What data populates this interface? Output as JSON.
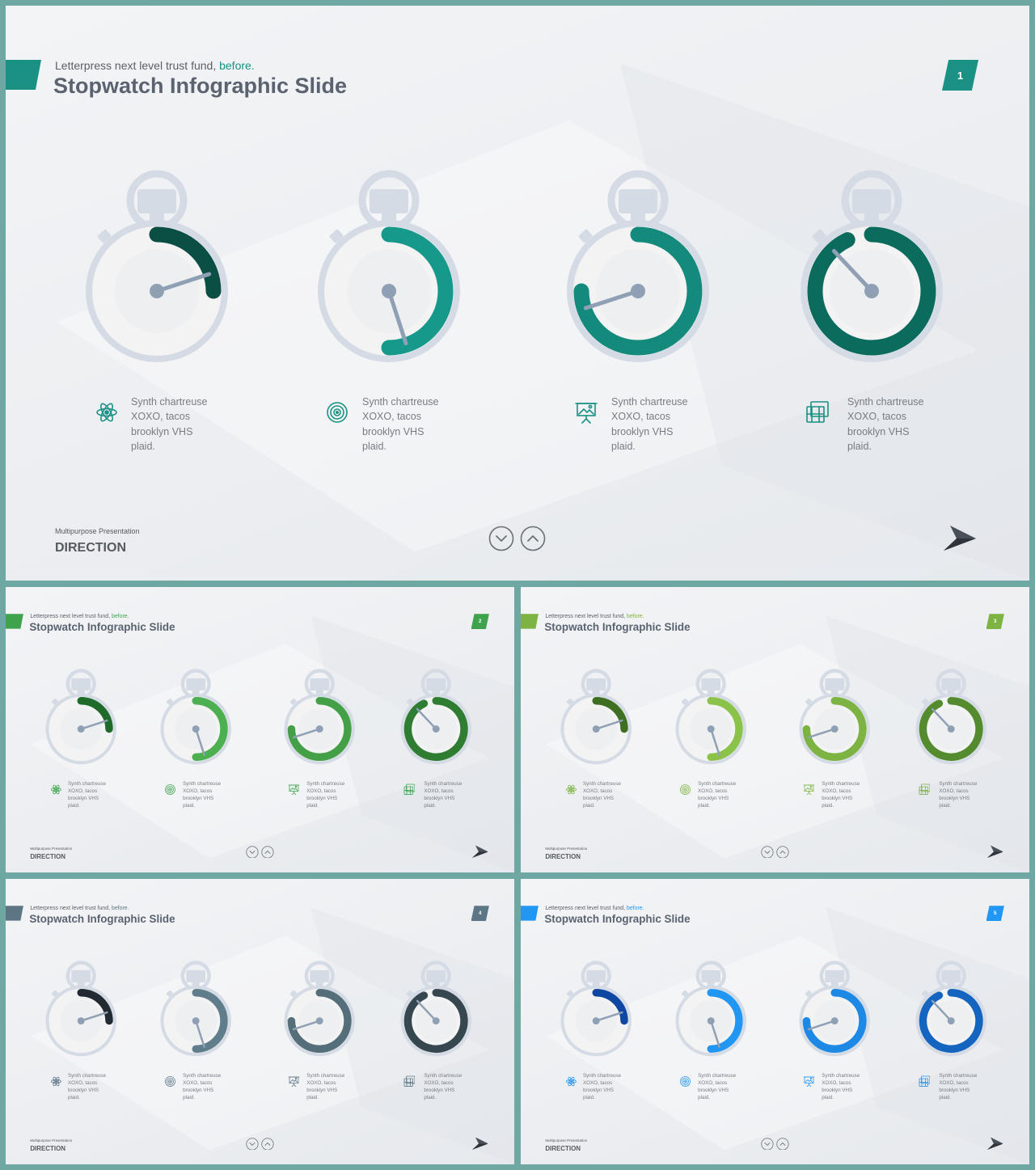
{
  "common": {
    "subtitle_prefix": "Letterpress next level trust fund,",
    "subtitle_accent": "before.",
    "title": "Stopwatch Infographic Slide",
    "footer_small": "Multipurpose Presentation",
    "footer_brand": "DIRECTION",
    "items": [
      {
        "icon": "atom-icon",
        "lines": [
          "Synth chartreuse",
          "XOXO,  tacos",
          "brooklyn VHS",
          "plaid."
        ]
      },
      {
        "icon": "target-icon",
        "lines": [
          "Synth chartreuse",
          "XOXO,  tacos",
          "brooklyn VHS",
          "plaid."
        ]
      },
      {
        "icon": "presentation-board-icon",
        "lines": [
          "Synth chartreuse",
          "XOXO,  tacos",
          "brooklyn VHS",
          "plaid."
        ]
      },
      {
        "icon": "gallery-frames-icon",
        "lines": [
          "Synth chartreuse",
          "XOXO,  tacos",
          "brooklyn VHS",
          "plaid."
        ]
      }
    ],
    "progress_fractions": [
      0.25,
      0.5,
      0.75,
      0.93
    ]
  },
  "slides": [
    {
      "number": "1",
      "accent": "#1a9183",
      "arc_colors": [
        "#0b4f44",
        "#16998a",
        "#148a7d",
        "#0b6b5c"
      ]
    },
    {
      "number": "2",
      "accent": "#3fa34d",
      "arc_colors": [
        "#1f6b2c",
        "#4caf50",
        "#43a047",
        "#2e7d32"
      ]
    },
    {
      "number": "3",
      "accent": "#7cb342",
      "arc_colors": [
        "#3f6f22",
        "#8bc34a",
        "#7cb342",
        "#558b2f"
      ]
    },
    {
      "number": "4",
      "accent": "#5d7686",
      "arc_colors": [
        "#222b31",
        "#607d8b",
        "#546e7a",
        "#37474f"
      ]
    },
    {
      "number": "5",
      "accent": "#2196f3",
      "arc_colors": [
        "#0d47a1",
        "#2196f3",
        "#1e88e5",
        "#1565c0"
      ]
    }
  ]
}
